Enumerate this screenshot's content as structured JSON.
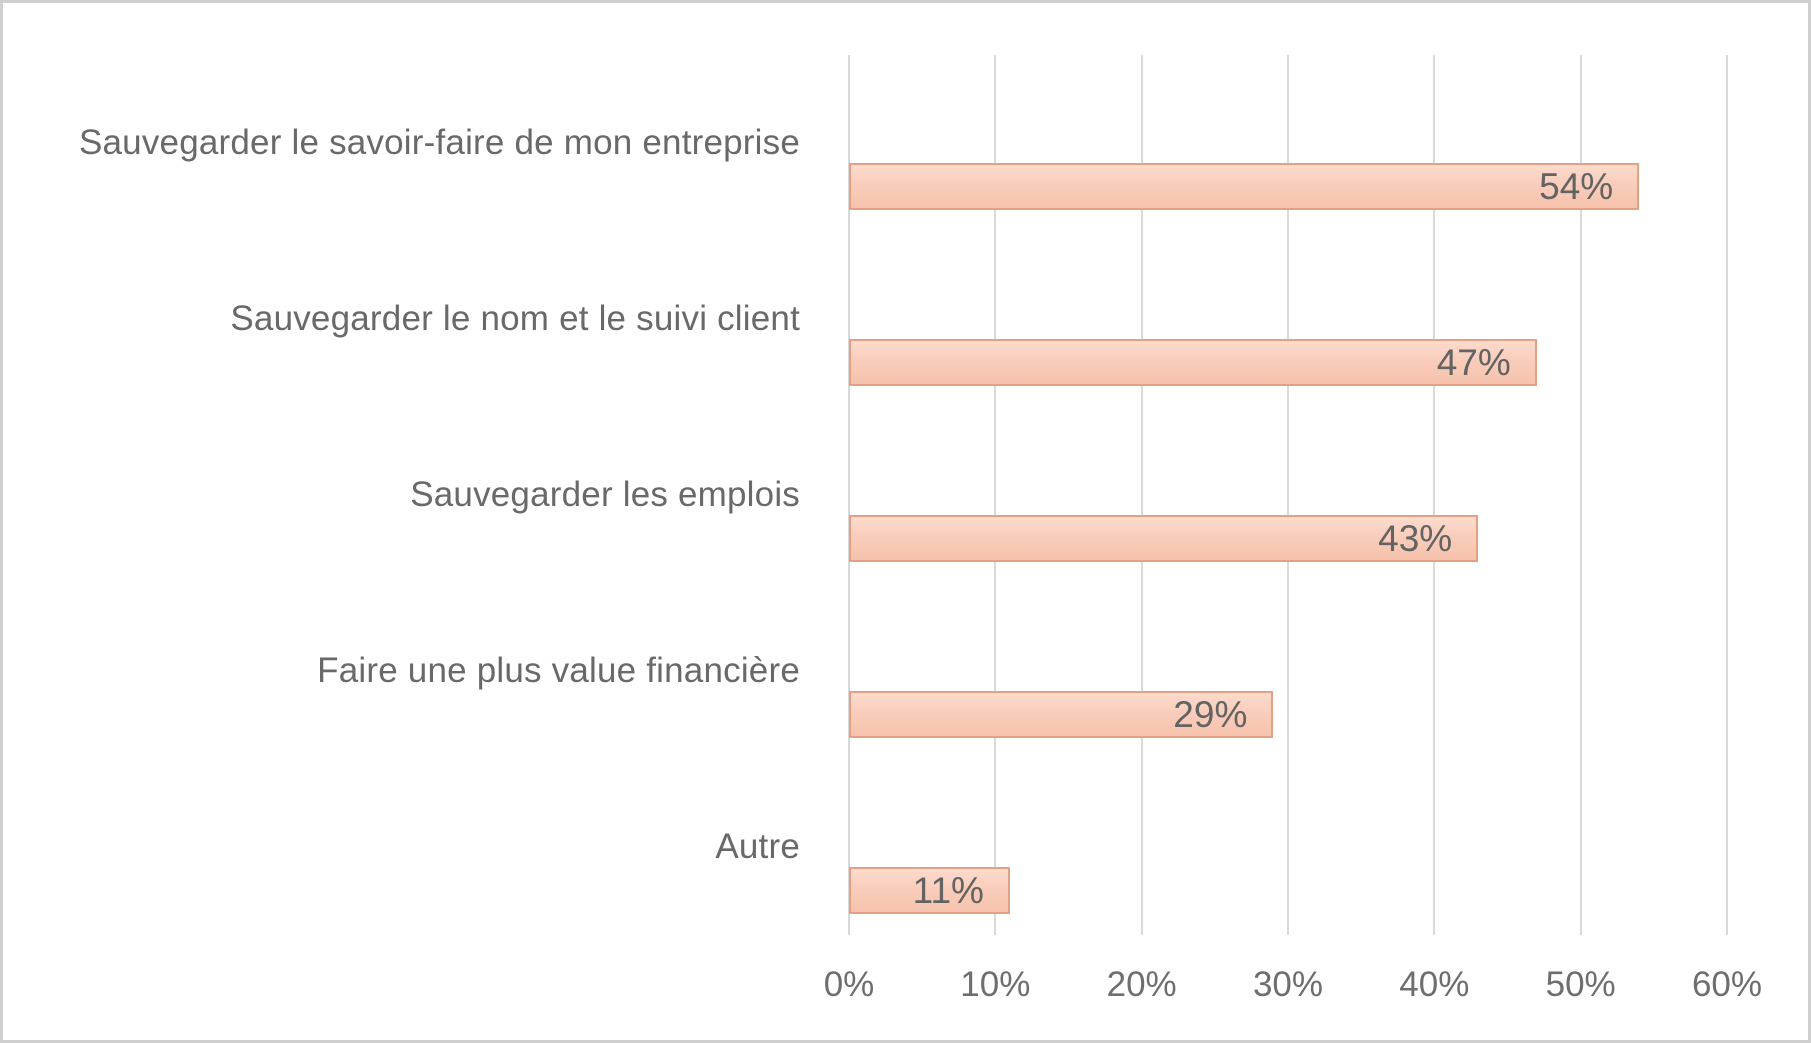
{
  "chart_data": {
    "type": "bar",
    "orientation": "horizontal",
    "title": "",
    "xlabel": "",
    "ylabel": "",
    "categories": [
      "Sauvegarder le savoir-faire de mon entreprise",
      "Sauvegarder le nom et le suivi client",
      "Sauvegarder les emplois",
      "Faire une plus value financière",
      "Autre"
    ],
    "values": [
      54,
      47,
      43,
      29,
      11
    ],
    "value_labels": [
      "54%",
      "47%",
      "43%",
      "29%",
      "11%"
    ],
    "x_ticks": [
      0,
      10,
      20,
      30,
      40,
      50,
      60
    ],
    "x_tick_labels": [
      "0%",
      "10%",
      "20%",
      "30%",
      "40%",
      "50%",
      "60%"
    ],
    "xlim": [
      0,
      60
    ],
    "grid": "vertical-only",
    "legend": "none",
    "colors": {
      "bar_fill_top": "#fcdbcd",
      "bar_fill_bottom": "#f6c3ad",
      "bar_border": "#e3a184",
      "gridline": "#d9d9d9",
      "frame_border": "#cfcfcf",
      "category_text": "#696969",
      "axis_text": "#6e6e6e",
      "value_text": "#636363",
      "background": "#ffffff"
    }
  }
}
